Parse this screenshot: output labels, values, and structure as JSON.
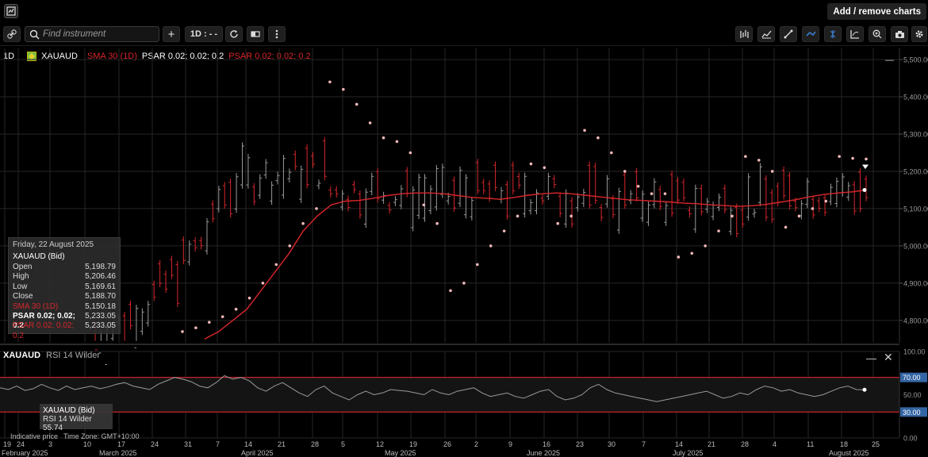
{
  "topbar": {
    "logo_icon": "chart-logo-icon",
    "add_remove_label": "Add / remove charts"
  },
  "toolbar": {
    "search_placeholder": "Find instrument",
    "add_label": "+",
    "interval_label": "1D : - -",
    "right_icons": [
      "bar-type-icon",
      "indicator-icon",
      "draw-line-icon",
      "tag-icon",
      "crosshair-icon",
      "chart-style-icon",
      "zoom-icon",
      "camera-icon",
      "settings-icon"
    ]
  },
  "legend": {
    "period": "1D",
    "symbol": "XAUAUD",
    "sma": "SMA 30 (1D)",
    "psar1": "PSAR 0.02; 0.02; 0.2",
    "psar2": "PSAR 0.02; 0.02; 0.2"
  },
  "tooltip": {
    "date": "Friday, 22 August 2025",
    "instrument": "XAUAUD (Bid)",
    "rows": [
      {
        "label": "Open",
        "value": "5,198.79"
      },
      {
        "label": "High",
        "value": "5,206.46"
      },
      {
        "label": "Low",
        "value": "5,169.61"
      },
      {
        "label": "Close",
        "value": "5,188.70"
      },
      {
        "label": "SMA 30 (1D)",
        "value": "5,150.18"
      },
      {
        "label": "PSAR 0.02; 0.02; 0.2",
        "value": "5,233.05"
      },
      {
        "label": "PSAR 0.02; 0.02; 0.2",
        "value": "5,233.05"
      }
    ]
  },
  "rsi": {
    "symbol": "XAUAUD",
    "name": "RSI 14 Wilder",
    "tip_instrument": "XAUAUD (Bid)",
    "tip_label": "RSI 14 Wilder",
    "tip_value": "55.74",
    "levels": [
      "70.00",
      "30.00"
    ]
  },
  "footer": {
    "indicative": "Indicative price",
    "timezone": "Time Zone: GMT+10:00"
  },
  "colors": {
    "up": "#9a9a9a",
    "down": "#d8262b",
    "sma": "#d8262b",
    "psar": "#f2b8b8",
    "grid": "#262626",
    "rsi": "#9a9a9a",
    "level": "#d8262b",
    "badge": "#3465a4"
  },
  "chart_data": [
    {
      "type": "candlestick",
      "title": "",
      "x_axis": {
        "day_labels": [
          "19",
          "24",
          "3",
          "10",
          "17",
          "24",
          "31",
          "7",
          "14",
          "21",
          "28",
          "5",
          "12",
          "19",
          "26",
          "2",
          "9",
          "16",
          "23",
          "30",
          "7",
          "14",
          "21",
          "28",
          "4",
          "11",
          "18",
          "25"
        ],
        "month_labels": [
          "February 2025",
          "March 2025",
          "April 2025",
          "May 2025",
          "June 2025",
          "July 2025",
          "August 2025"
        ]
      },
      "y_axis": {
        "labels": [
          "5,500.00",
          "5,400.00",
          "5,300.00",
          "5,200.00",
          "5,100.00",
          "5,000.00",
          "4,900.00",
          "4,800.00"
        ],
        "range": [
          4740,
          5530
        ]
      },
      "grid": true,
      "legend_position": "top-left",
      "series": [
        {
          "name": "SMA 30 (1D)",
          "kind": "line",
          "values": [
            4750,
            4770,
            4800,
            4830,
            4880,
            4930,
            4980,
            5040,
            5080,
            5110,
            5120,
            5122,
            5128,
            5135,
            5140,
            5142,
            5142,
            5140,
            5135,
            5130,
            5128,
            5125,
            5130,
            5136,
            5140,
            5142,
            5140,
            5136,
            5132,
            5128,
            5124,
            5122,
            5120,
            5118,
            5115,
            5113,
            5110,
            5108,
            5106,
            5108,
            5112,
            5118,
            5124,
            5132,
            5138,
            5142,
            5145,
            5150
          ]
        },
        {
          "name": "PSAR 0.02; 0.02; 0.2",
          "kind": "dots",
          "values": [
            4770,
            4780,
            4795,
            4810,
            4830,
            4860,
            4900,
            4950,
            5000,
            5060,
            5100,
            5440,
            5420,
            5380,
            5330,
            5290,
            5280,
            5250,
            5110,
            5060,
            4880,
            4900,
            4950,
            5000,
            5040,
            5080,
            5220,
            5210,
            5060,
            5080,
            5310,
            5290,
            5250,
            5200,
            5160,
            5140,
            5140,
            4970,
            4980,
            5000,
            5040,
            5080,
            5240,
            5230,
            5200,
            5050,
            5080,
            5100,
            5120,
            5240,
            5235,
            5233
          ]
        }
      ]
    },
    {
      "type": "line",
      "title": "",
      "name": "RSI 14 Wilder",
      "y_axis": {
        "labels": [
          "100.00",
          "70.00",
          "50.00",
          "30.00",
          "0.00"
        ],
        "range": [
          0,
          100
        ]
      },
      "levels": [
        70,
        30
      ],
      "values": [
        58,
        56,
        60,
        55,
        57,
        62,
        58,
        55,
        60,
        56,
        58,
        60,
        57,
        59,
        62,
        64,
        60,
        58,
        56,
        62,
        66,
        70,
        68,
        65,
        60,
        58,
        64,
        72,
        68,
        70,
        66,
        58,
        54,
        60,
        64,
        58,
        52,
        48,
        56,
        60,
        52,
        48,
        44,
        50,
        54,
        50,
        52,
        56,
        55,
        54,
        52,
        50,
        56,
        52,
        50,
        54,
        56,
        58,
        52,
        48,
        50,
        52,
        48,
        46,
        50,
        54,
        56,
        48,
        44,
        46,
        50,
        58,
        62,
        56,
        52,
        50,
        48,
        46,
        44,
        42,
        44,
        46,
        48,
        50,
        52,
        54,
        50,
        46,
        48,
        52,
        50,
        56,
        60,
        58,
        54,
        56,
        52,
        50,
        48,
        50,
        54,
        58,
        60,
        56,
        55.74
      ]
    }
  ]
}
